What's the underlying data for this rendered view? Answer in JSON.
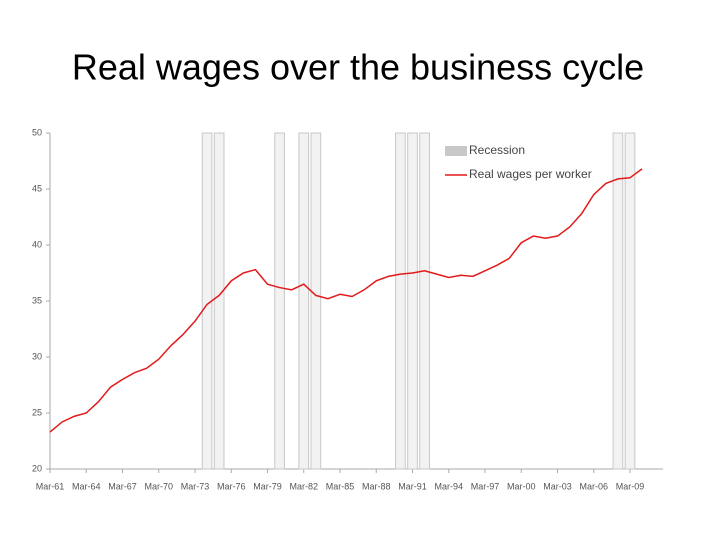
{
  "chart_data": {
    "type": "line",
    "title": "Real wages over the business cycle",
    "categories": [
      "Mar-61",
      null,
      null,
      "Mar-64",
      null,
      null,
      "Mar-67",
      null,
      null,
      "Mar-70",
      null,
      null,
      "Mar-73",
      null,
      null,
      "Mar-76",
      null,
      null,
      "Mar-79",
      null,
      null,
      "Mar-82",
      null,
      null,
      "Mar-85",
      null,
      null,
      "Mar-88",
      null,
      null,
      "Mar-91",
      null,
      null,
      "Mar-94",
      null,
      null,
      "Mar-97",
      null,
      null,
      "Mar-00",
      null,
      null,
      "Mar-03",
      null,
      null,
      "Mar-06",
      null,
      null,
      "Mar-09",
      null
    ],
    "series": [
      {
        "name": "Recession",
        "color": "#c8c8c8",
        "type": "bar",
        "values": [
          null,
          null,
          null,
          null,
          null,
          null,
          null,
          null,
          null,
          null,
          null,
          null,
          null,
          50,
          50,
          null,
          null,
          null,
          null,
          50,
          null,
          50,
          50,
          null,
          null,
          null,
          null,
          null,
          null,
          50,
          50,
          50,
          null,
          null,
          null,
          null,
          null,
          null,
          null,
          null,
          null,
          null,
          null,
          null,
          null,
          null,
          null,
          50,
          50,
          null
        ]
      },
      {
        "name": "Real wages per worker",
        "color": "#e31a1c",
        "type": "line",
        "values": [
          23.3,
          24.2,
          24.7,
          25.0,
          26.0,
          27.3,
          28.0,
          28.6,
          29.0,
          29.8,
          31.0,
          32.0,
          33.2,
          34.7,
          35.5,
          36.8,
          37.5,
          37.8,
          36.5,
          36.2,
          36.0,
          36.5,
          35.5,
          35.2,
          35.6,
          35.4,
          36.0,
          36.8,
          37.2,
          37.4,
          37.5,
          37.7,
          37.4,
          37.1,
          37.3,
          37.2,
          37.7,
          38.2,
          38.8,
          40.2,
          40.8,
          40.6,
          40.8,
          41.6,
          42.8,
          44.5,
          45.5,
          45.9,
          46.0,
          46.8
        ]
      }
    ],
    "ylim": [
      20,
      50
    ],
    "yticks": [
      20,
      25,
      30,
      35,
      40,
      45,
      50
    ],
    "legend": "top-right"
  }
}
